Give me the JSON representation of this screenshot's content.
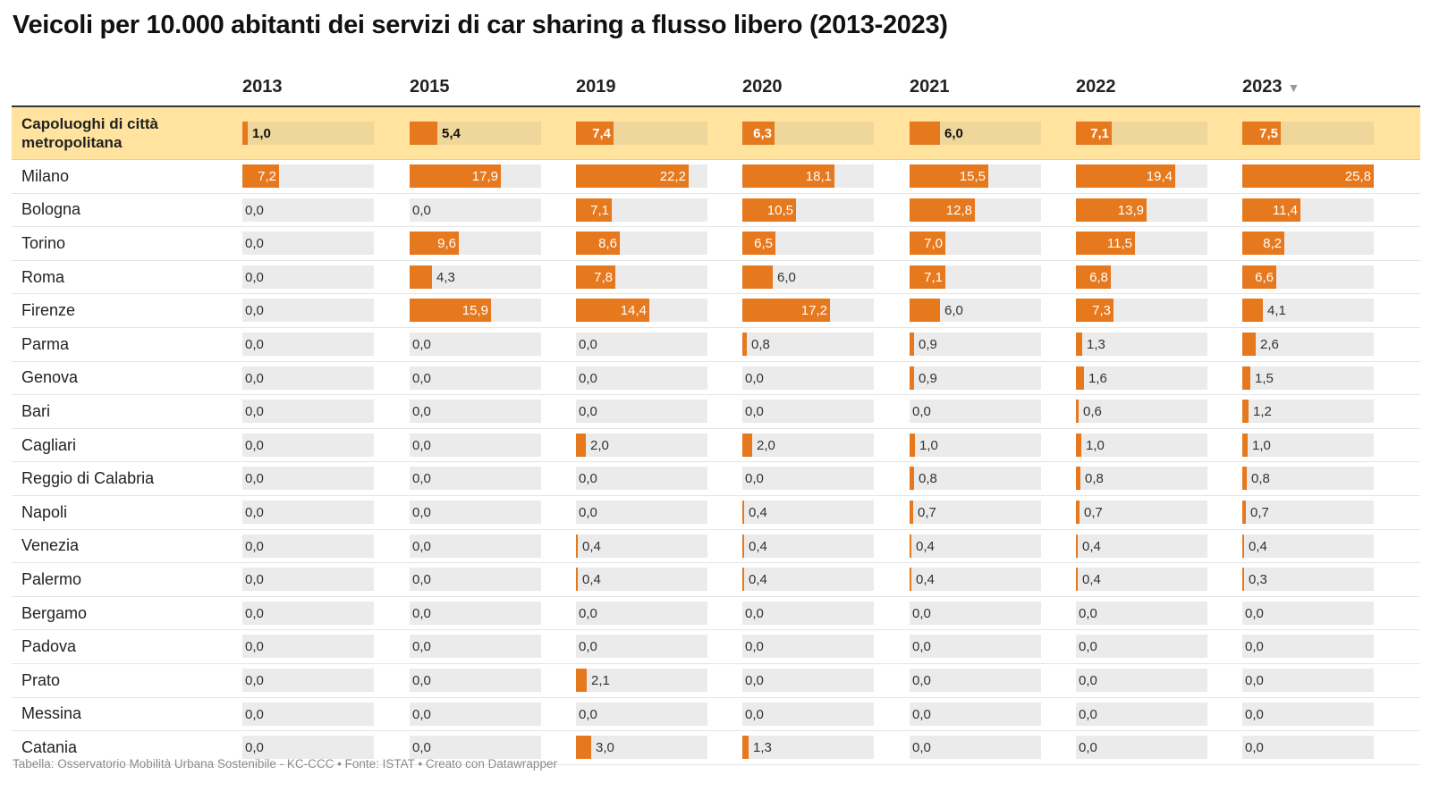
{
  "title": "Veicoli per 10.000 abitanti dei servizi di car sharing a flusso libero (2013-2023)",
  "sort_indicator": "▼",
  "footer": "Tabella: Osservatorio Mobilità Urbana Sostenibile - KC-CCC • Fonte: ISTAT • Creato con Datawrapper",
  "colors": {
    "bar": "#e6781e",
    "track": "#ebebeb",
    "highlight": "#ffe39f",
    "highlight_track": "#efd69a"
  },
  "chart_data": {
    "type": "table",
    "scale_max": 25.8,
    "columns": [
      "2013",
      "2015",
      "2019",
      "2020",
      "2021",
      "2022",
      "2023"
    ],
    "rows": [
      {
        "label": "Capoluoghi di città metropolitana",
        "highlight": true,
        "values": [
          "1,0",
          "5,4",
          "7,4",
          "6,3",
          "6,0",
          "7,1",
          "7,5"
        ]
      },
      {
        "label": "Milano",
        "values": [
          "7,2",
          "17,9",
          "22,2",
          "18,1",
          "15,5",
          "19,4",
          "25,8"
        ]
      },
      {
        "label": "Bologna",
        "values": [
          "0,0",
          "0,0",
          "7,1",
          "10,5",
          "12,8",
          "13,9",
          "11,4"
        ]
      },
      {
        "label": "Torino",
        "values": [
          "0,0",
          "9,6",
          "8,6",
          "6,5",
          "7,0",
          "11,5",
          "8,2"
        ]
      },
      {
        "label": "Roma",
        "values": [
          "0,0",
          "4,3",
          "7,8",
          "6,0",
          "7,1",
          "6,8",
          "6,6"
        ]
      },
      {
        "label": "Firenze",
        "values": [
          "0,0",
          "15,9",
          "14,4",
          "17,2",
          "6,0",
          "7,3",
          "4,1"
        ]
      },
      {
        "label": "Parma",
        "values": [
          "0,0",
          "0,0",
          "0,0",
          "0,8",
          "0,9",
          "1,3",
          "2,6"
        ]
      },
      {
        "label": "Genova",
        "values": [
          "0,0",
          "0,0",
          "0,0",
          "0,0",
          "0,9",
          "1,6",
          "1,5"
        ]
      },
      {
        "label": "Bari",
        "values": [
          "0,0",
          "0,0",
          "0,0",
          "0,0",
          "0,0",
          "0,6",
          "1,2"
        ]
      },
      {
        "label": "Cagliari",
        "values": [
          "0,0",
          "0,0",
          "2,0",
          "2,0",
          "1,0",
          "1,0",
          "1,0"
        ]
      },
      {
        "label": "Reggio di Calabria",
        "values": [
          "0,0",
          "0,0",
          "0,0",
          "0,0",
          "0,8",
          "0,8",
          "0,8"
        ]
      },
      {
        "label": "Napoli",
        "values": [
          "0,0",
          "0,0",
          "0,0",
          "0,4",
          "0,7",
          "0,7",
          "0,7"
        ]
      },
      {
        "label": "Venezia",
        "values": [
          "0,0",
          "0,0",
          "0,4",
          "0,4",
          "0,4",
          "0,4",
          "0,4"
        ]
      },
      {
        "label": "Palermo",
        "values": [
          "0,0",
          "0,0",
          "0,4",
          "0,4",
          "0,4",
          "0,4",
          "0,3"
        ]
      },
      {
        "label": "Bergamo",
        "values": [
          "0,0",
          "0,0",
          "0,0",
          "0,0",
          "0,0",
          "0,0",
          "0,0"
        ]
      },
      {
        "label": "Padova",
        "values": [
          "0,0",
          "0,0",
          "0,0",
          "0,0",
          "0,0",
          "0,0",
          "0,0"
        ]
      },
      {
        "label": "Prato",
        "values": [
          "0,0",
          "0,0",
          "2,1",
          "0,0",
          "0,0",
          "0,0",
          "0,0"
        ]
      },
      {
        "label": "Messina",
        "values": [
          "0,0",
          "0,0",
          "0,0",
          "0,0",
          "0,0",
          "0,0",
          "0,0"
        ]
      },
      {
        "label": "Catania",
        "values": [
          "0,0",
          "0,0",
          "3,0",
          "1,3",
          "0,0",
          "0,0",
          "0,0"
        ]
      }
    ]
  }
}
